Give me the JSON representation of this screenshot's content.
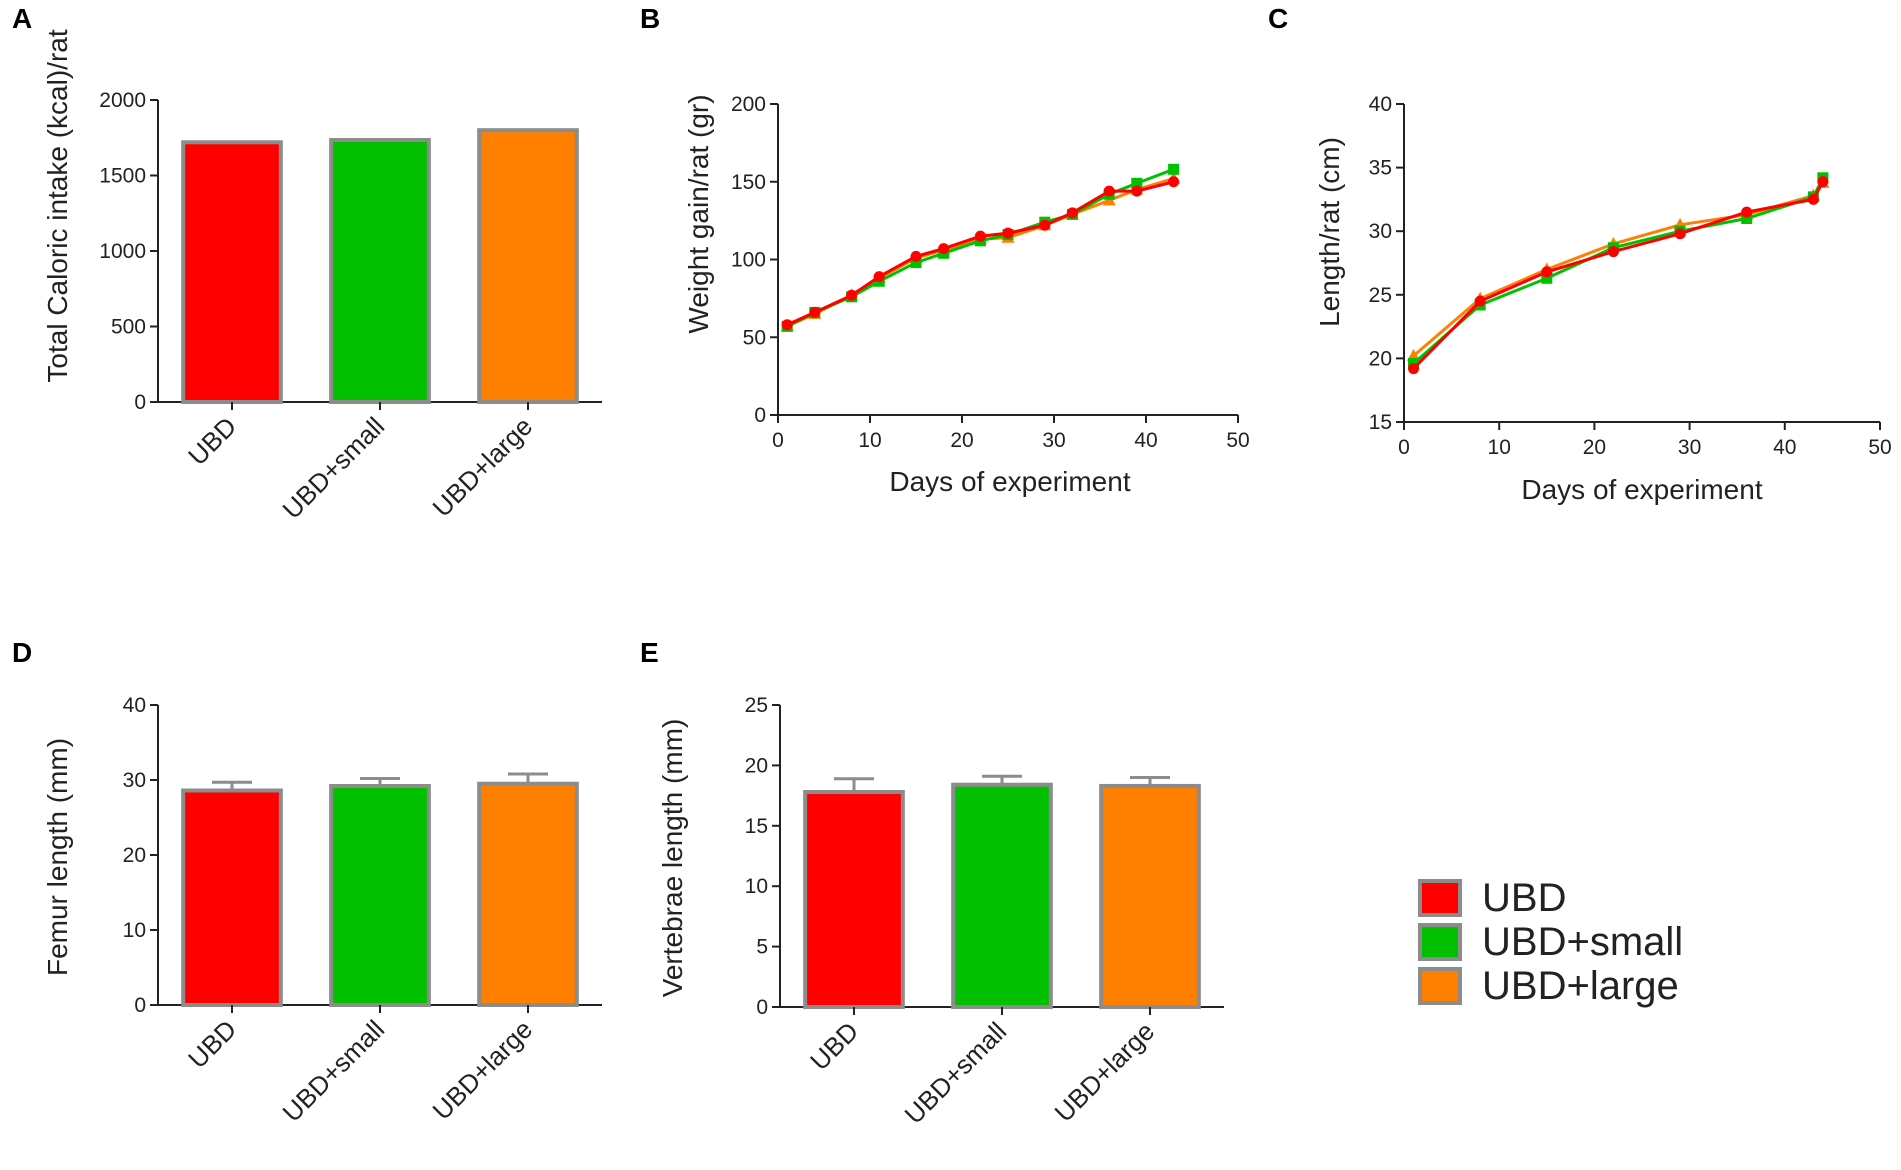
{
  "colors": {
    "UBD": "#ff0000",
    "UBD+small": "#00c000",
    "UBD+large": "#ff8000",
    "bar_border": "#8c8c8c",
    "axis": "#222222"
  },
  "legend": {
    "entries": [
      "UBD",
      "UBD+small",
      "UBD+large"
    ]
  },
  "chart_data": [
    {
      "id": "A",
      "panel_label": "A",
      "type": "bar",
      "categories": [
        "UBD",
        "UBD+small",
        "UBD+large"
      ],
      "values": [
        1720,
        1735,
        1800
      ],
      "errors": [
        0,
        0,
        0
      ],
      "title": "",
      "xlabel": "",
      "ylabel": "Total Caloric intake (kcal)/rat",
      "ylim": [
        0,
        2000
      ],
      "yticks": [
        0,
        500,
        1000,
        1500,
        2000
      ],
      "ytick_labels": [
        "0",
        "500",
        "1000",
        "1500",
        "2000"
      ],
      "grid": false
    },
    {
      "id": "B",
      "panel_label": "B",
      "type": "line",
      "title": "",
      "xlabel": "Days of experiment",
      "ylabel": "Weight gain/rat (gr)",
      "xlim": [
        0,
        50
      ],
      "ylim": [
        0,
        200
      ],
      "xticks": [
        0,
        10,
        20,
        30,
        40,
        50
      ],
      "xtick_labels": [
        "0",
        "10",
        "20",
        "30",
        "40",
        "50"
      ],
      "yticks": [
        0,
        50,
        100,
        150,
        200
      ],
      "ytick_labels": [
        "0",
        "50",
        "100",
        "150",
        "200"
      ],
      "grid": false,
      "series": [
        {
          "name": "UBD+large",
          "marker": "triangle",
          "x": [
            1,
            4,
            8,
            11,
            15,
            18,
            22,
            25,
            29,
            32,
            36,
            39,
            43
          ],
          "y": [
            57,
            65,
            77,
            88,
            101,
            106,
            113,
            114,
            122,
            129,
            138,
            145,
            152
          ]
        },
        {
          "name": "UBD+small",
          "marker": "square",
          "x": [
            1,
            4,
            8,
            11,
            15,
            18,
            22,
            25,
            29,
            32,
            36,
            39,
            43
          ],
          "y": [
            57,
            66,
            76,
            86,
            98,
            104,
            112,
            116,
            124,
            129,
            142,
            149,
            158
          ]
        },
        {
          "name": "UBD",
          "marker": "circle",
          "x": [
            1,
            4,
            8,
            11,
            15,
            18,
            22,
            25,
            29,
            32,
            36,
            39,
            43
          ],
          "y": [
            58,
            66,
            77,
            89,
            102,
            107,
            115,
            117,
            122,
            130,
            144,
            144,
            150
          ]
        }
      ]
    },
    {
      "id": "C",
      "panel_label": "C",
      "type": "line",
      "title": "",
      "xlabel": "Days of experiment",
      "ylabel": "Length/rat (cm)",
      "xlim": [
        0,
        50
      ],
      "ylim": [
        15,
        40
      ],
      "xticks": [
        0,
        10,
        20,
        30,
        40,
        50
      ],
      "xtick_labels": [
        "0",
        "10",
        "20",
        "30",
        "40",
        "50"
      ],
      "yticks": [
        15,
        20,
        25,
        30,
        35,
        40
      ],
      "ytick_labels": [
        "15",
        "20",
        "25",
        "30",
        "35",
        "40"
      ],
      "grid": false,
      "series": [
        {
          "name": "UBD+large",
          "marker": "triangle",
          "x": [
            1,
            8,
            15,
            22,
            29,
            36,
            43,
            44
          ],
          "y": [
            20.2,
            24.7,
            27.0,
            29.0,
            30.5,
            31.3,
            32.8,
            33.8
          ]
        },
        {
          "name": "UBD+small",
          "marker": "square",
          "x": [
            1,
            8,
            15,
            22,
            29,
            36,
            43,
            44
          ],
          "y": [
            19.6,
            24.2,
            26.3,
            28.7,
            30.0,
            31.0,
            32.7,
            34.2
          ]
        },
        {
          "name": "UBD",
          "marker": "circle",
          "x": [
            1,
            8,
            15,
            22,
            29,
            36,
            43,
            44
          ],
          "y": [
            19.2,
            24.5,
            26.8,
            28.4,
            29.8,
            31.5,
            32.5,
            33.9
          ]
        }
      ]
    },
    {
      "id": "D",
      "panel_label": "D",
      "type": "bar",
      "categories": [
        "UBD",
        "UBD+small",
        "UBD+large"
      ],
      "values": [
        28.6,
        29.2,
        29.5
      ],
      "errors": [
        1.1,
        1.0,
        1.3
      ],
      "title": "",
      "xlabel": "",
      "ylabel": "Femur length (mm)",
      "ylim": [
        0,
        40
      ],
      "yticks": [
        0,
        10,
        20,
        30,
        40
      ],
      "ytick_labels": [
        "0",
        "10",
        "20",
        "30",
        "40"
      ],
      "grid": false
    },
    {
      "id": "E",
      "panel_label": "E",
      "type": "bar",
      "categories": [
        "UBD",
        "UBD+small",
        "UBD+large"
      ],
      "values": [
        17.8,
        18.4,
        18.3
      ],
      "errors": [
        1.1,
        0.7,
        0.7
      ],
      "title": "",
      "xlabel": "",
      "ylabel": "Vertebrae length (mm)",
      "ylim": [
        0,
        25
      ],
      "yticks": [
        0,
        5,
        10,
        15,
        20,
        25
      ],
      "ytick_labels": [
        "0",
        "5",
        "10",
        "15",
        "20",
        "25"
      ],
      "grid": false
    }
  ]
}
